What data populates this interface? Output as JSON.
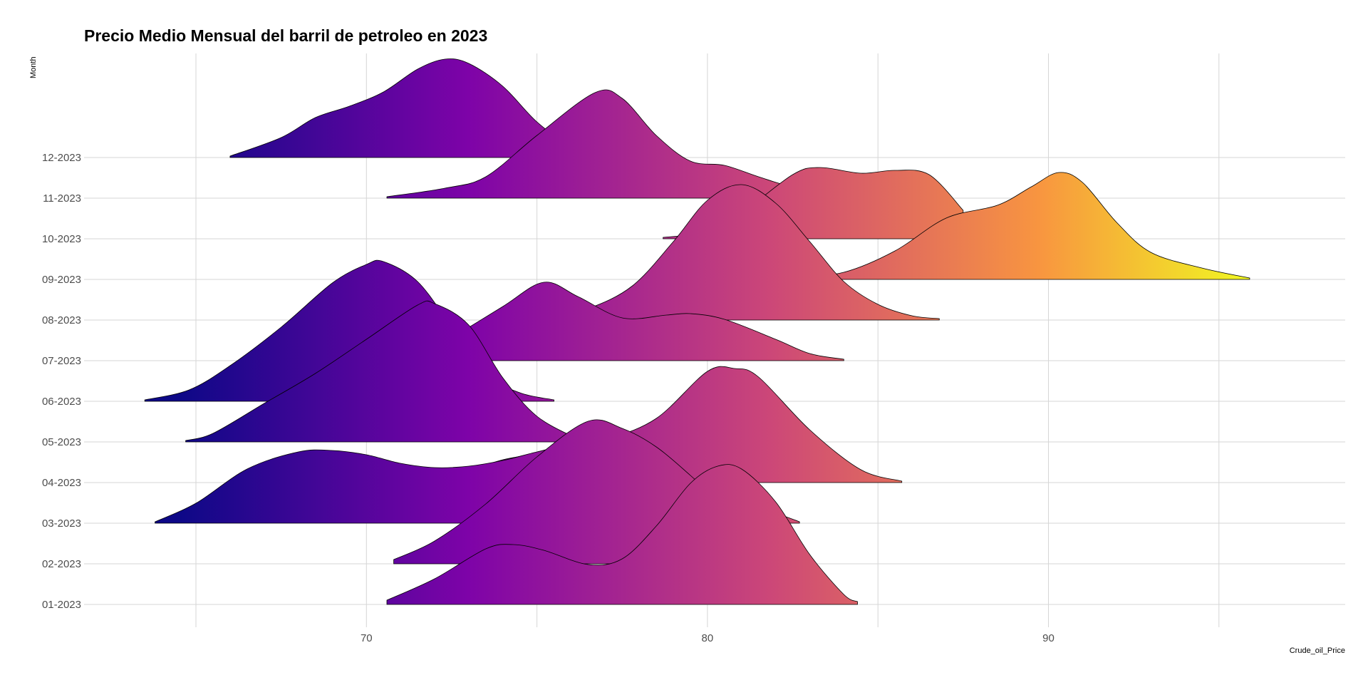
{
  "chart_data": {
    "type": "ridgeline",
    "title": "Precio Medio Mensual del barril de petroleo en 2023",
    "xlabel": "Crude_oil_Price",
    "ylabel": "Month",
    "xlim": [
      62.6,
      97.7
    ],
    "x_ticks": [
      70,
      80,
      90
    ],
    "x_minor_grid": [
      65,
      75,
      85,
      95
    ],
    "grid": true,
    "fill": "gradient along x (plasma palette)",
    "colors": {
      "low": "#0d0887",
      "purple": "#7e03a8",
      "magenta": "#cc4778",
      "orange": "#f89540",
      "high": "#f0f921"
    },
    "categories": [
      "01-2023",
      "02-2023",
      "03-2023",
      "04-2023",
      "05-2023",
      "06-2023",
      "07-2023",
      "08-2023",
      "09-2023",
      "10-2023",
      "11-2023",
      "12-2023"
    ],
    "series": [
      {
        "category": "01-2023",
        "x_range": [
          70.6,
          84.4
        ],
        "density": [
          [
            70.6,
            0.03
          ],
          [
            72,
            0.18
          ],
          [
            73.5,
            0.39
          ],
          [
            74.3,
            0.42
          ],
          [
            75.2,
            0.38
          ],
          [
            76.5,
            0.28
          ],
          [
            77.5,
            0.32
          ],
          [
            78.5,
            0.55
          ],
          [
            79.5,
            0.85
          ],
          [
            80.3,
            0.97
          ],
          [
            81,
            0.95
          ],
          [
            82,
            0.72
          ],
          [
            83,
            0.35
          ],
          [
            84,
            0.07
          ],
          [
            84.4,
            0.02
          ]
        ]
      },
      {
        "category": "02-2023",
        "x_range": [
          70.8,
          82.6
        ],
        "density": [
          [
            70.8,
            0.03
          ],
          [
            72,
            0.16
          ],
          [
            73.5,
            0.42
          ],
          [
            75,
            0.75
          ],
          [
            76.5,
            1.0
          ],
          [
            77.5,
            0.95
          ],
          [
            78.5,
            0.82
          ],
          [
            79.5,
            0.62
          ],
          [
            80.5,
            0.4
          ],
          [
            81.5,
            0.15
          ],
          [
            82.6,
            0.02
          ]
        ]
      },
      {
        "category": "03-2023",
        "x_range": [
          63.8,
          82.7
        ],
        "density": [
          [
            63.8,
            0.01
          ],
          [
            65,
            0.14
          ],
          [
            66.5,
            0.38
          ],
          [
            68,
            0.5
          ],
          [
            69,
            0.51
          ],
          [
            70,
            0.48
          ],
          [
            71,
            0.42
          ],
          [
            72,
            0.39
          ],
          [
            73,
            0.4
          ],
          [
            74,
            0.44
          ],
          [
            75,
            0.5
          ],
          [
            76,
            0.55
          ],
          [
            77,
            0.52
          ],
          [
            78,
            0.43
          ],
          [
            79,
            0.3
          ],
          [
            80,
            0.2
          ],
          [
            81,
            0.14
          ],
          [
            82,
            0.07
          ],
          [
            82.7,
            0.01
          ]
        ]
      },
      {
        "category": "04-2023",
        "x_range": [
          71.8,
          85.7
        ],
        "density": [
          [
            71.8,
            0.01
          ],
          [
            72.5,
            0.04
          ],
          [
            74,
            0.16
          ],
          [
            75.5,
            0.22
          ],
          [
            77,
            0.3
          ],
          [
            78.5,
            0.45
          ],
          [
            80,
            0.78
          ],
          [
            80.8,
            0.8
          ],
          [
            81.5,
            0.74
          ],
          [
            83,
            0.37
          ],
          [
            84.5,
            0.09
          ],
          [
            85.7,
            0.01
          ]
        ]
      },
      {
        "category": "05-2023",
        "x_range": [
          64.7,
          76.2
        ],
        "density": [
          [
            64.7,
            0.01
          ],
          [
            65.5,
            0.06
          ],
          [
            67,
            0.27
          ],
          [
            68.5,
            0.48
          ],
          [
            70,
            0.72
          ],
          [
            71.5,
            0.96
          ],
          [
            72,
            0.97
          ],
          [
            73,
            0.82
          ],
          [
            74,
            0.45
          ],
          [
            75,
            0.18
          ],
          [
            76.2,
            0.02
          ]
        ]
      },
      {
        "category": "06-2023",
        "x_range": [
          63.5,
          75.5
        ],
        "density": [
          [
            63.5,
            0.01
          ],
          [
            64.8,
            0.08
          ],
          [
            66,
            0.25
          ],
          [
            67.5,
            0.52
          ],
          [
            69,
            0.83
          ],
          [
            70,
            0.96
          ],
          [
            70.5,
            0.98
          ],
          [
            71.5,
            0.84
          ],
          [
            72.5,
            0.52
          ],
          [
            73.5,
            0.19
          ],
          [
            74.5,
            0.06
          ],
          [
            75.5,
            0.01
          ]
        ]
      },
      {
        "category": "07-2023",
        "x_range": [
          71.5,
          84.0
        ],
        "density": [
          [
            71.5,
            0.02
          ],
          [
            72.5,
            0.16
          ],
          [
            74,
            0.38
          ],
          [
            75.2,
            0.55
          ],
          [
            76.2,
            0.45
          ],
          [
            77.5,
            0.3
          ],
          [
            78.8,
            0.32
          ],
          [
            79.5,
            0.33
          ],
          [
            80.5,
            0.29
          ],
          [
            82,
            0.15
          ],
          [
            83,
            0.05
          ],
          [
            84,
            0.01
          ]
        ]
      },
      {
        "category": "08-2023",
        "x_range": [
          75.3,
          86.8
        ],
        "density": [
          [
            75.3,
            0.02
          ],
          [
            76.5,
            0.08
          ],
          [
            77.8,
            0.24
          ],
          [
            79,
            0.55
          ],
          [
            80,
            0.84
          ],
          [
            81,
            0.95
          ],
          [
            82,
            0.82
          ],
          [
            83,
            0.55
          ],
          [
            84,
            0.27
          ],
          [
            85,
            0.11
          ],
          [
            86,
            0.03
          ],
          [
            86.8,
            0.01
          ]
        ]
      },
      {
        "category": "09-2023",
        "x_range": [
          82.5,
          95.9
        ],
        "density": [
          [
            82.5,
            0.01
          ],
          [
            84,
            0.05
          ],
          [
            85.5,
            0.2
          ],
          [
            87,
            0.43
          ],
          [
            88.5,
            0.52
          ],
          [
            89.5,
            0.65
          ],
          [
            90.3,
            0.75
          ],
          [
            91,
            0.68
          ],
          [
            92,
            0.4
          ],
          [
            93,
            0.19
          ],
          [
            94.5,
            0.08
          ],
          [
            95.9,
            0.01
          ]
        ]
      },
      {
        "category": "10-2023",
        "x_range": [
          78.7,
          87.5
        ],
        "density": [
          [
            78.7,
            0.01
          ],
          [
            80,
            0.05
          ],
          [
            81,
            0.18
          ],
          [
            82.5,
            0.45
          ],
          [
            83.3,
            0.5
          ],
          [
            84.5,
            0.46
          ],
          [
            85.5,
            0.48
          ],
          [
            86.5,
            0.45
          ],
          [
            87.5,
            0.2
          ]
        ]
      },
      {
        "category": "11-2023",
        "x_range": [
          70.6,
          85.0
        ],
        "density": [
          [
            70.6,
            0.01
          ],
          [
            72.3,
            0.07
          ],
          [
            73.5,
            0.15
          ],
          [
            75,
            0.44
          ],
          [
            76.7,
            0.74
          ],
          [
            77.5,
            0.7
          ],
          [
            78.5,
            0.44
          ],
          [
            79.5,
            0.26
          ],
          [
            80.5,
            0.23
          ],
          [
            81.5,
            0.15
          ],
          [
            82.5,
            0.08
          ],
          [
            84,
            0.03
          ],
          [
            85,
            0.01
          ]
        ]
      },
      {
        "category": "12-2023",
        "x_range": [
          66.0,
          77.0
        ],
        "density": [
          [
            66,
            0.01
          ],
          [
            67.5,
            0.14
          ],
          [
            68.5,
            0.28
          ],
          [
            69.5,
            0.36
          ],
          [
            70.5,
            0.46
          ],
          [
            71.5,
            0.62
          ],
          [
            72.3,
            0.69
          ],
          [
            73,
            0.66
          ],
          [
            74,
            0.5
          ],
          [
            75,
            0.25
          ],
          [
            76,
            0.08
          ],
          [
            77,
            0.01
          ]
        ]
      }
    ]
  }
}
